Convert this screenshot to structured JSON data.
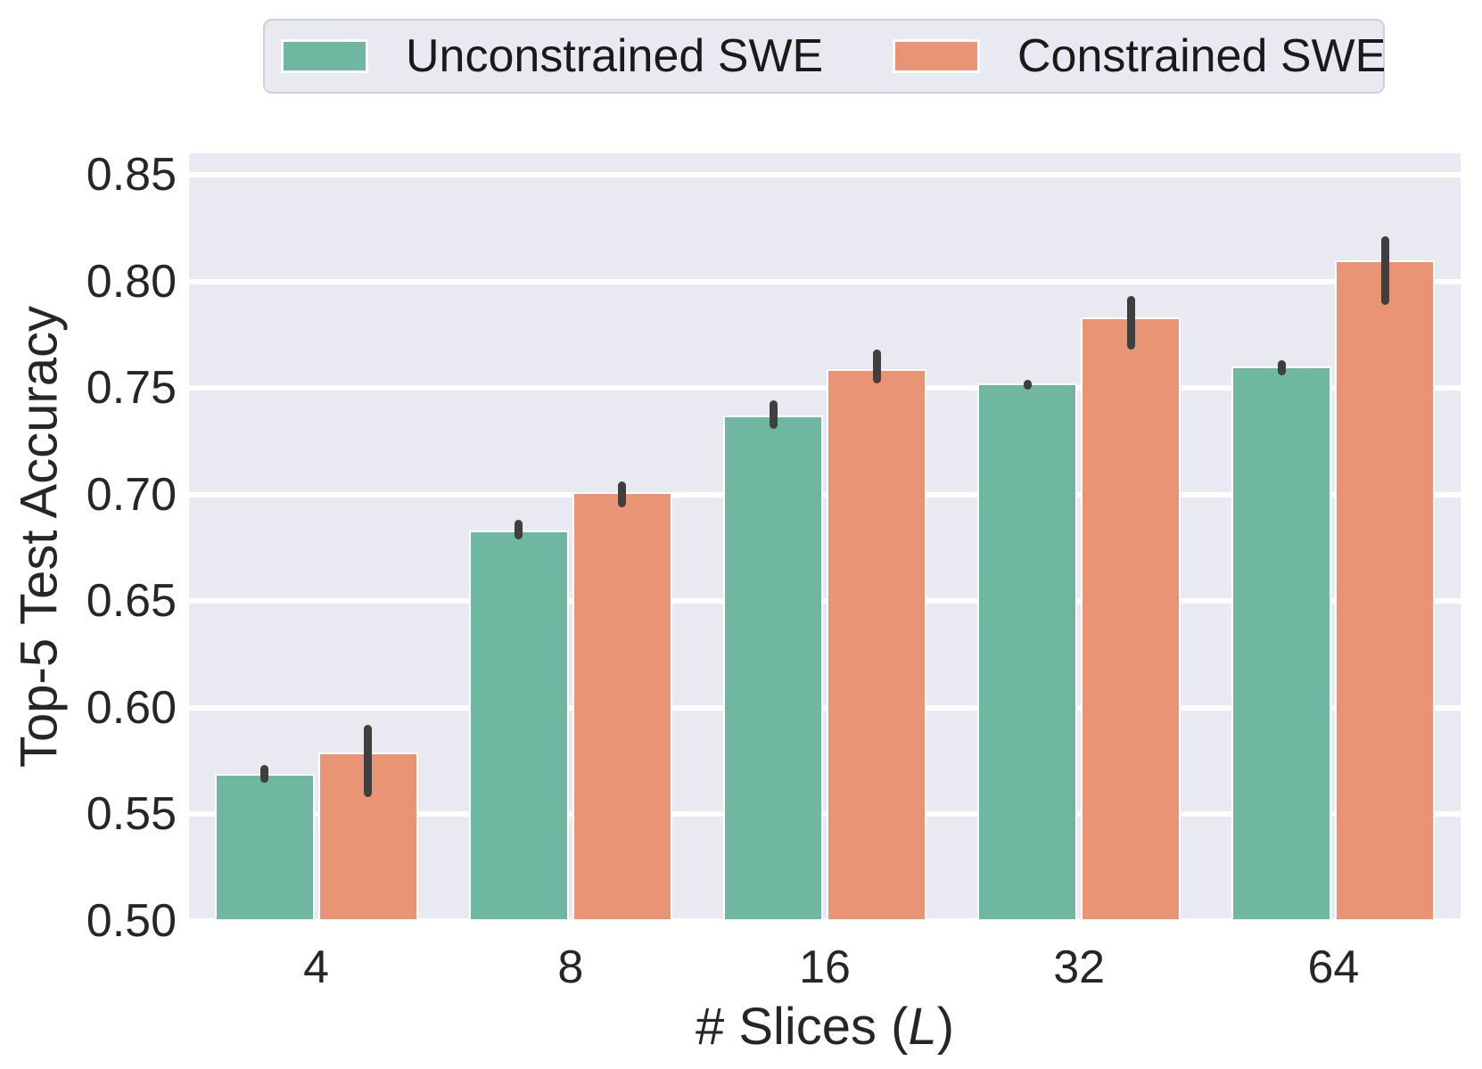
{
  "figure": {
    "background": "#ffffff",
    "text_color": "#262626"
  },
  "legend": {
    "background": "#e9e9f1",
    "border_color": "#cfcfd6",
    "position": "top"
  },
  "chart_data": {
    "type": "bar",
    "categories": [
      "4",
      "8",
      "16",
      "32",
      "64"
    ],
    "series": [
      {
        "name": "Unconstrained SWE",
        "color": "#6fb7a0",
        "values": [
          0.569,
          0.683,
          0.737,
          0.752,
          0.76
        ],
        "err_lo": [
          0.565,
          0.679,
          0.731,
          0.749,
          0.756
        ],
        "err_hi": [
          0.573,
          0.688,
          0.744,
          0.754,
          0.763
        ]
      },
      {
        "name": "Constrained SWE",
        "color": "#e99575",
        "values": [
          0.579,
          0.701,
          0.759,
          0.783,
          0.81
        ],
        "err_lo": [
          0.558,
          0.694,
          0.752,
          0.768,
          0.789
        ],
        "err_hi": [
          0.592,
          0.706,
          0.768,
          0.793,
          0.821
        ]
      }
    ],
    "xlabel_prefix": "# Slices (",
    "xlabel_var": "L",
    "xlabel_suffix": ")",
    "ylabel": "Top-5 Test Accuracy",
    "ylim": [
      0.5,
      0.86
    ],
    "yticks": [
      0.5,
      0.55,
      0.6,
      0.65,
      0.7,
      0.75,
      0.8,
      0.85
    ],
    "ytick_labels": [
      "0.50",
      "0.55",
      "0.60",
      "0.65",
      "0.70",
      "0.75",
      "0.80",
      "0.85"
    ],
    "grid": true,
    "grid_color": "#ffffff",
    "plot_background": "#e9e9f1",
    "error_bar_color": "#3f3f3f",
    "legend_position": "top"
  }
}
